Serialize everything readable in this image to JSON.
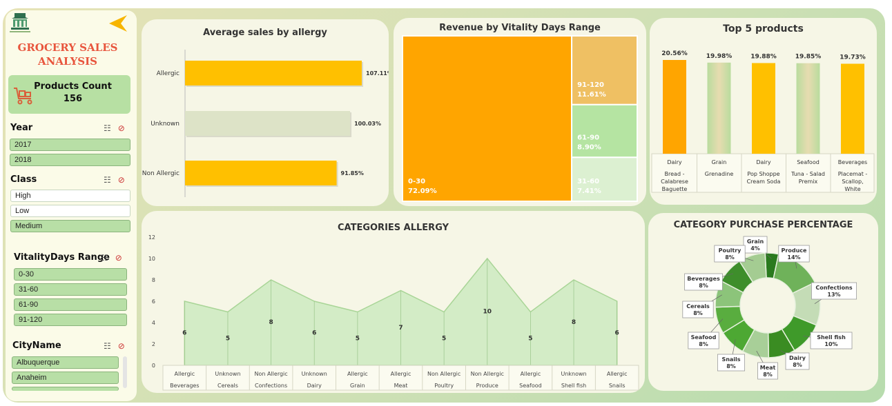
{
  "dashboard": {
    "title_line1": "GROCERY SALES",
    "title_line2": "ANALYSIS",
    "kpi_label": "Products Count",
    "kpi_value": "156",
    "collapse_icon": "arrow-left-icon",
    "logo_icon": "building-logo-icon"
  },
  "slicers": {
    "year": {
      "label": "Year",
      "items": [
        {
          "text": "2017",
          "selected": true
        },
        {
          "text": "2018",
          "selected": true
        }
      ]
    },
    "class": {
      "label": "Class",
      "items": [
        {
          "text": "High",
          "selected": false
        },
        {
          "text": "Low",
          "selected": false
        },
        {
          "text": "Medium",
          "selected": true
        }
      ]
    },
    "vitality": {
      "label": "VitalityDays Range",
      "items": [
        {
          "text": "0-30",
          "selected": true
        },
        {
          "text": "31-60",
          "selected": true
        },
        {
          "text": "61-90",
          "selected": true
        },
        {
          "text": "91-120",
          "selected": true
        }
      ]
    },
    "city": {
      "label": "CityName",
      "items": [
        {
          "text": "Albuquerque",
          "selected": true
        },
        {
          "text": "Anaheim",
          "selected": true
        }
      ]
    }
  },
  "colors": {
    "accent": "#ffc000",
    "dark_orange": "#ffa500",
    "green": "#b9e4a3",
    "title_red": "#e8553d",
    "pale": "#dde3c7"
  },
  "chart_data": [
    {
      "type": "bar",
      "orientation": "horizontal",
      "title": "Average sales by allergy",
      "categories": [
        "Allergic",
        "Unknown",
        "Non Allergic"
      ],
      "values": [
        107.11,
        100.03,
        91.85
      ],
      "labels": [
        "107.11%",
        "100.03%",
        "91.85%"
      ],
      "colors": [
        "#ffc000",
        "#dde3c7",
        "#ffc000"
      ]
    },
    {
      "type": "treemap",
      "title": "Revenue by Vitality Days Range",
      "items": [
        {
          "name": "0-30",
          "value": 72.09,
          "label": "72.09%",
          "color": "#ffa500"
        },
        {
          "name": "91-120",
          "value": 11.61,
          "label": "11.61%",
          "color": "#efc063"
        },
        {
          "name": "61-90",
          "value": 8.9,
          "label": "8.90%",
          "color": "#b5e4a2"
        },
        {
          "name": "31-60",
          "value": 7.41,
          "label": "7.41%",
          "color": "#dcf0d1"
        }
      ]
    },
    {
      "type": "bar",
      "title": "Top 5 products",
      "categories": [
        {
          "group": "Dairy",
          "name": "Bread - Calabrese Baguette"
        },
        {
          "group": "Grain",
          "name": "Grenadine"
        },
        {
          "group": "Dairy",
          "name": "Pop Shoppe Cream Soda"
        },
        {
          "group": "Seafood",
          "name": "Tuna - Salad Premix"
        },
        {
          "group": "Beverages",
          "name": "Placemat - Scallop, White"
        }
      ],
      "values": [
        20.56,
        19.98,
        19.88,
        19.85,
        19.73
      ],
      "labels": [
        "20.56%",
        "19.98%",
        "19.88%",
        "19.85%",
        "19.73%"
      ],
      "colors": [
        "#ffa500",
        "#cdd9b4",
        "#ffc000",
        "#cdd9b4",
        "#ffc000"
      ]
    },
    {
      "type": "area",
      "title": "CATEGORIES ALLERGY",
      "ylim": [
        0,
        12
      ],
      "yticks": [
        0,
        2,
        4,
        6,
        8,
        10,
        12
      ],
      "categories": [
        {
          "sub": "Allergic",
          "main": "Beverages"
        },
        {
          "sub": "Unknown",
          "main": "Cereals"
        },
        {
          "sub": "Non Allergic",
          "main": "Confections"
        },
        {
          "sub": "Unknown",
          "main": "Dairy"
        },
        {
          "sub": "Allergic",
          "main": "Grain"
        },
        {
          "sub": "Allergic",
          "main": "Meat"
        },
        {
          "sub": "Non Allergic",
          "main": "Poultry"
        },
        {
          "sub": "Non Allergic",
          "main": "Produce"
        },
        {
          "sub": "Allergic",
          "main": "Seafood"
        },
        {
          "sub": "Unknown",
          "main": "Shell fish"
        },
        {
          "sub": "Allergic",
          "main": "Snails"
        }
      ],
      "values": [
        6,
        5,
        8,
        6,
        5,
        7,
        5,
        10,
        5,
        8,
        6
      ]
    },
    {
      "type": "pie",
      "title": "CATEGORY PURCHASE PERCENTAGE",
      "slices": [
        {
          "name": "Grain",
          "value": 4,
          "label": "4%",
          "color": "#2a7a1e"
        },
        {
          "name": "Produce",
          "value": 14,
          "label": "14%",
          "color": "#6fb25a"
        },
        {
          "name": "Confections",
          "value": 13,
          "label": "13%",
          "color": "#c4dcb6"
        },
        {
          "name": "Shell fish",
          "value": 10,
          "label": "10%",
          "color": "#3f9a2a"
        },
        {
          "name": "Dairy",
          "value": 8,
          "label": "8%",
          "color": "#3a8c22"
        },
        {
          "name": "Meat",
          "value": 8,
          "label": "8%",
          "color": "#a8cf98"
        },
        {
          "name": "Snails",
          "value": 8,
          "label": "8%",
          "color": "#4da833"
        },
        {
          "name": "Seafood",
          "value": 8,
          "label": "8%",
          "color": "#59ad3f"
        },
        {
          "name": "Cereals",
          "value": 8,
          "label": "8%",
          "color": "#8cc47a"
        },
        {
          "name": "Beverages",
          "value": 8,
          "label": "8%",
          "color": "#3e8e2b"
        },
        {
          "name": "Poultry",
          "value": 8,
          "label": "8%",
          "color": "#a4cc92"
        }
      ]
    }
  ]
}
